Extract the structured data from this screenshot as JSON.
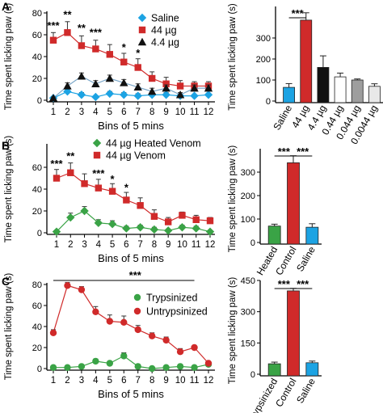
{
  "figure": {
    "panel_labels": [
      "A",
      "B",
      "C"
    ]
  },
  "chart_data": [
    {
      "id": "A-line",
      "type": "line",
      "panel": "A",
      "xlabel": "Bins of 5 mins",
      "ylabel": "Time spent licking paw (s)",
      "x": [
        1,
        2,
        3,
        4,
        5,
        6,
        7,
        8,
        9,
        10,
        11,
        12
      ],
      "xticks": [
        "1",
        "2",
        "3",
        "4",
        "5",
        "6",
        "7",
        "8",
        "9",
        "10",
        "11",
        "12"
      ],
      "ylim": [
        0,
        80
      ],
      "yticks": [
        0,
        20,
        40,
        60,
        80
      ],
      "legend_position": "top-right",
      "series": [
        {
          "name": "Saline",
          "marker": "diamond",
          "color": "#1ca3e3",
          "values": [
            2,
            8,
            5,
            3,
            6,
            5,
            4,
            5,
            5,
            4,
            4,
            5
          ],
          "errors": [
            1,
            2,
            2,
            1,
            2,
            2,
            2,
            2,
            2,
            2,
            1,
            1
          ]
        },
        {
          "name": "44 µg",
          "marker": "square",
          "color": "#d02a2a",
          "values": [
            55,
            62,
            50,
            47,
            42,
            35,
            30,
            20,
            15,
            13,
            13,
            13
          ],
          "errors": [
            7,
            10,
            9,
            8,
            9,
            8,
            8,
            6,
            6,
            5,
            4,
            4
          ]
        },
        {
          "name": "4.4 µg",
          "marker": "triangle",
          "color": "#111111",
          "values": [
            2,
            13,
            22,
            15,
            20,
            16,
            12,
            8,
            11,
            5,
            11,
            11
          ],
          "errors": [
            1,
            3,
            3,
            3,
            3,
            3,
            3,
            3,
            3,
            2,
            3,
            3
          ]
        }
      ],
      "annotations": [
        {
          "x": 1,
          "text": "***",
          "y": 68
        },
        {
          "x": 2,
          "text": "**",
          "y": 78
        },
        {
          "x": 3,
          "text": "**",
          "y": 66
        },
        {
          "x": 4,
          "text": "***",
          "y": 62
        },
        {
          "x": 6,
          "text": "*",
          "y": 48
        },
        {
          "x": 7,
          "text": "*",
          "y": 43
        }
      ]
    },
    {
      "id": "A-bar",
      "type": "bar",
      "panel": "A",
      "ylabel": "Time spent licking paw (s)",
      "ylim": [
        0,
        450
      ],
      "yticks": [
        0,
        100,
        200,
        300
      ],
      "categories": [
        "Saline",
        "44 µg",
        "4.4 µg",
        "0.44 µg",
        "0.044 µg",
        "0.0044 µg"
      ],
      "values": [
        65,
        385,
        160,
        115,
        100,
        70
      ],
      "errors": [
        18,
        35,
        55,
        18,
        5,
        12
      ],
      "colors": [
        "#1ca3e3",
        "#d02a2a",
        "#111111",
        "#ffffff",
        "#9e9e9e",
        "#e8e8e8"
      ],
      "annotations": [
        {
          "from": 0,
          "to": 1,
          "text": "***"
        }
      ]
    },
    {
      "id": "B-line",
      "type": "line",
      "panel": "B",
      "xlabel": "Bins of 5 mins",
      "ylabel": "Time spent licking paw (s)",
      "x": [
        1,
        2,
        3,
        4,
        5,
        6,
        7,
        8,
        9,
        10,
        11,
        12
      ],
      "xticks": [
        "1",
        "2",
        "3",
        "4",
        "5",
        "6",
        "7",
        "8",
        "9",
        "10",
        "11",
        "12"
      ],
      "ylim": [
        0,
        80
      ],
      "yticks": [
        0,
        20,
        40,
        60
      ],
      "legend_position": "top-right",
      "series": [
        {
          "name": "44 µg Heated Venom",
          "marker": "diamond",
          "color": "#3aa346",
          "values": [
            1,
            14,
            20,
            9,
            8,
            4,
            5,
            3,
            2,
            5,
            4,
            1
          ],
          "errors": [
            1,
            4,
            4,
            3,
            3,
            2,
            2,
            2,
            1,
            2,
            2,
            1
          ]
        },
        {
          "name": "44 µg Venom",
          "marker": "square",
          "color": "#d02a2a",
          "values": [
            50,
            55,
            45,
            41,
            38,
            30,
            25,
            15,
            10,
            16,
            12,
            11
          ],
          "errors": [
            8,
            9,
            9,
            8,
            7,
            7,
            7,
            6,
            4,
            3,
            4,
            3
          ]
        }
      ],
      "annotations": [
        {
          "x": 1,
          "text": "***",
          "y": 63
        },
        {
          "x": 2,
          "text": "**",
          "y": 70
        },
        {
          "x": 4,
          "text": "***",
          "y": 54
        },
        {
          "x": 5,
          "text": "*",
          "y": 49
        },
        {
          "x": 6,
          "text": "*",
          "y": 41
        }
      ]
    },
    {
      "id": "B-bar",
      "type": "bar",
      "panel": "B",
      "ylabel": "Time spent licking paw (s)",
      "ylim": [
        0,
        400
      ],
      "yticks": [
        0,
        100,
        200,
        300
      ],
      "categories": [
        "Heated",
        "Control",
        "Saline"
      ],
      "values": [
        70,
        340,
        65
      ],
      "errors": [
        8,
        30,
        15
      ],
      "colors": [
        "#3aa346",
        "#d02a2a",
        "#1ca3e3"
      ],
      "annotations": [
        {
          "from": 0,
          "to": 1,
          "text": "***"
        },
        {
          "from": 1,
          "to": 2,
          "text": "***"
        }
      ]
    },
    {
      "id": "C-line",
      "type": "line",
      "panel": "C",
      "xlabel": "Bins of 5 mins",
      "ylabel": "Time spent licking paw (s)",
      "x": [
        1,
        2,
        3,
        4,
        5,
        6,
        7,
        8,
        9,
        10,
        11,
        12
      ],
      "xticks": [
        "1",
        "2",
        "3",
        "4",
        "5",
        "6",
        "7",
        "8",
        "9",
        "10",
        "11",
        "12"
      ],
      "ylim": [
        0,
        80
      ],
      "yticks": [
        0,
        20,
        40,
        60,
        80
      ],
      "legend_position": "right",
      "series": [
        {
          "name": "Trypsinized",
          "marker": "circle",
          "color": "#3aa346",
          "values": [
            1,
            1,
            2,
            7,
            5,
            12,
            2,
            0,
            1,
            2,
            1,
            4
          ],
          "errors": [
            1,
            1,
            1,
            2,
            2,
            3,
            1,
            1,
            1,
            1,
            1,
            1
          ]
        },
        {
          "name": "Untrypsinized",
          "marker": "circle",
          "color": "#d02a2a",
          "values": [
            34,
            79,
            75,
            54,
            45,
            44,
            37,
            31,
            27,
            16,
            20,
            5
          ],
          "errors": [
            3,
            3,
            3,
            5,
            6,
            6,
            4,
            3,
            3,
            3,
            2,
            2
          ]
        }
      ],
      "bracket": {
        "from": 1,
        "to": 11,
        "text": "***"
      }
    },
    {
      "id": "C-bar",
      "type": "bar",
      "panel": "C",
      "ylabel": "Time spent licking paw (s)",
      "ylim": [
        0,
        450
      ],
      "yticks": [
        0,
        150,
        300,
        450
      ],
      "categories": [
        "Trypsinized",
        "Control",
        "Saline"
      ],
      "values": [
        50,
        400,
        55
      ],
      "errors": [
        8,
        12,
        8
      ],
      "colors": [
        "#3aa346",
        "#d02a2a",
        "#1ca3e3"
      ],
      "annotations": [
        {
          "from": 0,
          "to": 1,
          "text": "***"
        },
        {
          "from": 1,
          "to": 2,
          "text": "***"
        }
      ]
    }
  ]
}
